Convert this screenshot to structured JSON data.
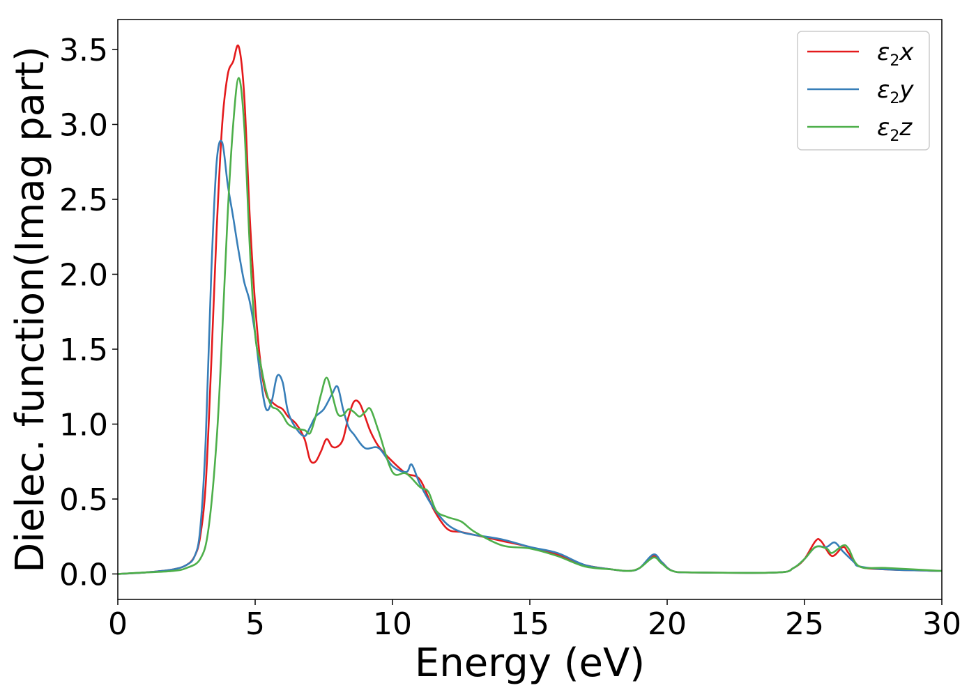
{
  "chart_data": {
    "type": "line",
    "title": "",
    "xlabel": "Energy (eV)",
    "ylabel": "Dielec. function(Imag part)",
    "xlim": [
      0,
      30
    ],
    "ylim": [
      -0.17,
      3.7
    ],
    "x_ticks": [
      0,
      5,
      10,
      15,
      20,
      25,
      30
    ],
    "y_ticks": [
      0.0,
      0.5,
      1.0,
      1.5,
      2.0,
      2.5,
      3.0,
      3.5
    ],
    "x_tick_labels": [
      "0",
      "5",
      "10",
      "15",
      "20",
      "25",
      "30"
    ],
    "y_tick_labels": [
      "0.0",
      "0.5",
      "1.0",
      "1.5",
      "2.0",
      "2.5",
      "3.0",
      "3.5"
    ],
    "grid": false,
    "legend_position": "top-right",
    "series": [
      {
        "name": "ε2x",
        "legend": {
          "symbol": "ε",
          "sub": "2",
          "var": "x"
        },
        "color": "#e41a1c",
        "points": [
          [
            0,
            0.0
          ],
          [
            1,
            0.01
          ],
          [
            2,
            0.03
          ],
          [
            2.5,
            0.06
          ],
          [
            2.8,
            0.12
          ],
          [
            3.0,
            0.25
          ],
          [
            3.2,
            0.6
          ],
          [
            3.4,
            1.4
          ],
          [
            3.6,
            2.3
          ],
          [
            3.8,
            3.0
          ],
          [
            4.0,
            3.33
          ],
          [
            4.2,
            3.42
          ],
          [
            4.4,
            3.52
          ],
          [
            4.6,
            3.2
          ],
          [
            4.8,
            2.4
          ],
          [
            5.0,
            1.8
          ],
          [
            5.2,
            1.4
          ],
          [
            5.4,
            1.2
          ],
          [
            5.6,
            1.15
          ],
          [
            5.8,
            1.12
          ],
          [
            6.0,
            1.1
          ],
          [
            6.2,
            1.05
          ],
          [
            6.5,
            1.0
          ],
          [
            6.8,
            0.9
          ],
          [
            7.0,
            0.76
          ],
          [
            7.2,
            0.75
          ],
          [
            7.4,
            0.82
          ],
          [
            7.6,
            0.9
          ],
          [
            7.8,
            0.85
          ],
          [
            8.0,
            0.85
          ],
          [
            8.2,
            0.9
          ],
          [
            8.4,
            1.05
          ],
          [
            8.6,
            1.15
          ],
          [
            8.8,
            1.14
          ],
          [
            9.0,
            1.05
          ],
          [
            9.2,
            0.95
          ],
          [
            9.5,
            0.85
          ],
          [
            10.0,
            0.75
          ],
          [
            10.5,
            0.67
          ],
          [
            11.0,
            0.63
          ],
          [
            11.5,
            0.43
          ],
          [
            12.0,
            0.3
          ],
          [
            12.5,
            0.28
          ],
          [
            13.0,
            0.26
          ],
          [
            14.0,
            0.22
          ],
          [
            15.0,
            0.18
          ],
          [
            16.0,
            0.13
          ],
          [
            17.0,
            0.06
          ],
          [
            18.0,
            0.03
          ],
          [
            18.6,
            0.02
          ],
          [
            19.0,
            0.04
          ],
          [
            19.5,
            0.12
          ],
          [
            19.8,
            0.08
          ],
          [
            20.2,
            0.02
          ],
          [
            21.0,
            0.01
          ],
          [
            24.0,
            0.01
          ],
          [
            24.6,
            0.04
          ],
          [
            25.0,
            0.1
          ],
          [
            25.4,
            0.22
          ],
          [
            25.6,
            0.22
          ],
          [
            26.0,
            0.12
          ],
          [
            26.4,
            0.18
          ],
          [
            26.6,
            0.14
          ],
          [
            27.0,
            0.05
          ],
          [
            28.0,
            0.03
          ],
          [
            30.0,
            0.02
          ]
        ]
      },
      {
        "name": "ε2y",
        "legend": {
          "symbol": "ε",
          "sub": "2",
          "var": "y"
        },
        "color": "#377eb8",
        "points": [
          [
            0,
            0.0
          ],
          [
            1,
            0.01
          ],
          [
            2,
            0.03
          ],
          [
            2.5,
            0.06
          ],
          [
            2.8,
            0.12
          ],
          [
            3.0,
            0.3
          ],
          [
            3.2,
            0.9
          ],
          [
            3.4,
            2.0
          ],
          [
            3.6,
            2.75
          ],
          [
            3.8,
            2.88
          ],
          [
            4.0,
            2.6
          ],
          [
            4.2,
            2.38
          ],
          [
            4.4,
            2.15
          ],
          [
            4.6,
            1.95
          ],
          [
            4.8,
            1.82
          ],
          [
            5.0,
            1.6
          ],
          [
            5.2,
            1.3
          ],
          [
            5.4,
            1.1
          ],
          [
            5.6,
            1.15
          ],
          [
            5.8,
            1.32
          ],
          [
            6.0,
            1.28
          ],
          [
            6.2,
            1.08
          ],
          [
            6.5,
            0.97
          ],
          [
            6.8,
            0.92
          ],
          [
            7.0,
            0.98
          ],
          [
            7.2,
            1.05
          ],
          [
            7.5,
            1.1
          ],
          [
            7.8,
            1.2
          ],
          [
            8.0,
            1.25
          ],
          [
            8.2,
            1.1
          ],
          [
            8.4,
            0.98
          ],
          [
            8.6,
            0.93
          ],
          [
            9.0,
            0.84
          ],
          [
            9.5,
            0.84
          ],
          [
            10.0,
            0.72
          ],
          [
            10.5,
            0.68
          ],
          [
            10.7,
            0.73
          ],
          [
            11.0,
            0.6
          ],
          [
            11.5,
            0.44
          ],
          [
            12.0,
            0.33
          ],
          [
            12.5,
            0.28
          ],
          [
            13.0,
            0.26
          ],
          [
            14.0,
            0.23
          ],
          [
            15.0,
            0.18
          ],
          [
            16.0,
            0.14
          ],
          [
            17.0,
            0.06
          ],
          [
            18.0,
            0.03
          ],
          [
            18.6,
            0.02
          ],
          [
            19.0,
            0.04
          ],
          [
            19.5,
            0.13
          ],
          [
            19.8,
            0.08
          ],
          [
            20.2,
            0.02
          ],
          [
            21.0,
            0.01
          ],
          [
            24.0,
            0.01
          ],
          [
            24.6,
            0.04
          ],
          [
            25.0,
            0.1
          ],
          [
            25.4,
            0.18
          ],
          [
            25.8,
            0.18
          ],
          [
            26.1,
            0.21
          ],
          [
            26.4,
            0.15
          ],
          [
            26.8,
            0.08
          ],
          [
            27.0,
            0.05
          ],
          [
            28.0,
            0.03
          ],
          [
            30.0,
            0.02
          ]
        ]
      },
      {
        "name": "ε2z",
        "legend": {
          "symbol": "ε",
          "sub": "2",
          "var": "z"
        },
        "color": "#4daf4a",
        "points": [
          [
            0,
            0.0
          ],
          [
            1,
            0.01
          ],
          [
            2,
            0.02
          ],
          [
            2.5,
            0.04
          ],
          [
            3.0,
            0.1
          ],
          [
            3.3,
            0.3
          ],
          [
            3.6,
            0.9
          ],
          [
            3.8,
            1.6
          ],
          [
            4.0,
            2.4
          ],
          [
            4.2,
            3.0
          ],
          [
            4.4,
            3.31
          ],
          [
            4.6,
            3.0
          ],
          [
            4.8,
            2.2
          ],
          [
            5.0,
            1.6
          ],
          [
            5.2,
            1.4
          ],
          [
            5.4,
            1.22
          ],
          [
            5.6,
            1.12
          ],
          [
            5.8,
            1.1
          ],
          [
            6.0,
            1.06
          ],
          [
            6.2,
            1.0
          ],
          [
            6.5,
            0.97
          ],
          [
            6.8,
            0.96
          ],
          [
            7.0,
            0.94
          ],
          [
            7.2,
            1.05
          ],
          [
            7.4,
            1.2
          ],
          [
            7.6,
            1.31
          ],
          [
            7.8,
            1.2
          ],
          [
            8.0,
            1.07
          ],
          [
            8.2,
            1.06
          ],
          [
            8.4,
            1.1
          ],
          [
            8.6,
            1.08
          ],
          [
            8.8,
            1.05
          ],
          [
            9.0,
            1.08
          ],
          [
            9.2,
            1.1
          ],
          [
            9.5,
            0.95
          ],
          [
            10.0,
            0.68
          ],
          [
            10.5,
            0.67
          ],
          [
            11.0,
            0.58
          ],
          [
            11.3,
            0.55
          ],
          [
            11.6,
            0.42
          ],
          [
            12.0,
            0.38
          ],
          [
            12.5,
            0.35
          ],
          [
            13.0,
            0.28
          ],
          [
            14.0,
            0.19
          ],
          [
            15.0,
            0.17
          ],
          [
            16.0,
            0.12
          ],
          [
            17.0,
            0.05
          ],
          [
            18.0,
            0.03
          ],
          [
            18.6,
            0.02
          ],
          [
            19.0,
            0.04
          ],
          [
            19.5,
            0.11
          ],
          [
            19.8,
            0.07
          ],
          [
            20.2,
            0.02
          ],
          [
            21.0,
            0.01
          ],
          [
            24.0,
            0.01
          ],
          [
            24.6,
            0.04
          ],
          [
            25.0,
            0.1
          ],
          [
            25.4,
            0.18
          ],
          [
            25.8,
            0.17
          ],
          [
            26.0,
            0.14
          ],
          [
            26.4,
            0.19
          ],
          [
            26.6,
            0.17
          ],
          [
            27.0,
            0.05
          ],
          [
            28.0,
            0.04
          ],
          [
            30.0,
            0.02
          ]
        ]
      }
    ]
  }
}
